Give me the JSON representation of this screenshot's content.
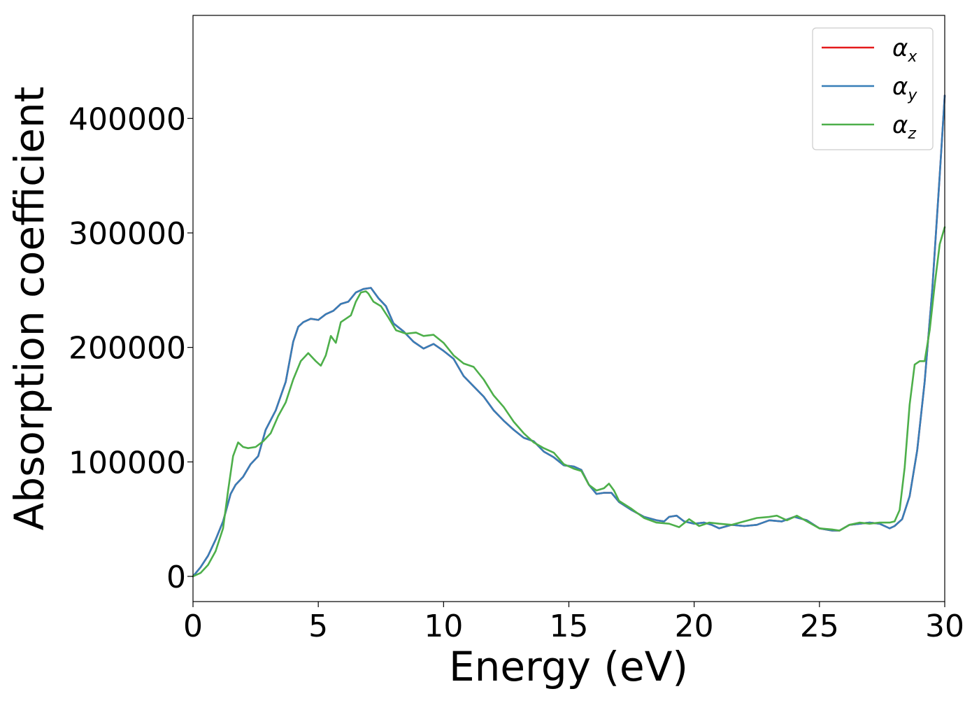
{
  "chart_data": {
    "type": "line",
    "title": "",
    "xlabel": "Energy (eV)",
    "ylabel": "Absorption coefficient",
    "xlim": [
      0,
      30
    ],
    "ylim": [
      -22000,
      490000
    ],
    "x_ticks": [
      0,
      5,
      10,
      15,
      20,
      25,
      30
    ],
    "x_tick_labels": [
      "0",
      "5",
      "10",
      "15",
      "20",
      "25",
      "30"
    ],
    "y_ticks": [
      0,
      100000,
      200000,
      300000,
      400000
    ],
    "y_tick_labels": [
      "0",
      "100000",
      "200000",
      "300000",
      "400000"
    ],
    "grid": false,
    "legend_position": "top-right",
    "legend": [
      {
        "symbol": "α",
        "subscript": "x",
        "color": "#e41a1c"
      },
      {
        "symbol": "α",
        "subscript": "y",
        "color": "#377eb8"
      },
      {
        "symbol": "α",
        "subscript": "z",
        "color": "#4daf4a"
      }
    ],
    "series": [
      {
        "name": "αx",
        "color": "#e41a1c",
        "x": [
          0,
          0.3,
          0.6,
          0.9,
          1.2,
          1.5,
          1.7,
          2.0,
          2.3,
          2.6,
          2.9,
          3.3,
          3.7,
          4.0,
          4.2,
          4.4,
          4.7,
          5.0,
          5.3,
          5.6,
          5.9,
          6.2,
          6.5,
          6.8,
          7.1,
          7.4,
          7.7,
          8.0,
          8.4,
          8.8,
          9.2,
          9.6,
          10.0,
          10.4,
          10.8,
          11.2,
          11.6,
          12.0,
          12.4,
          12.8,
          13.2,
          13.6,
          14.0,
          14.4,
          14.8,
          15.2,
          15.5,
          15.8,
          16.1,
          16.4,
          16.7,
          17.0,
          17.5,
          18.0,
          18.5,
          18.8,
          19.0,
          19.3,
          19.6,
          20.0,
          20.4,
          20.7,
          21.0,
          21.5,
          22.0,
          22.5,
          23.0,
          23.5,
          24.0,
          24.5,
          25.0,
          25.5,
          25.8,
          26.2,
          26.6,
          27.0,
          27.4,
          27.8,
          28.0,
          28.3,
          28.6,
          28.9,
          29.2,
          29.5,
          29.8,
          30.0
        ],
        "y": [
          0,
          8000,
          18000,
          32000,
          48000,
          72000,
          80000,
          87000,
          98000,
          105000,
          128000,
          145000,
          170000,
          205000,
          218000,
          222000,
          225000,
          224000,
          229000,
          232000,
          238000,
          240000,
          248000,
          251000,
          252000,
          243000,
          236000,
          221000,
          214000,
          205000,
          199000,
          203000,
          197000,
          190000,
          175000,
          166000,
          157000,
          145000,
          136000,
          128000,
          121000,
          118000,
          109000,
          104000,
          97000,
          96000,
          93000,
          80000,
          72000,
          73000,
          73000,
          65000,
          58000,
          52000,
          49000,
          48000,
          52000,
          53000,
          48000,
          46000,
          47000,
          45000,
          42000,
          45000,
          44000,
          45000,
          49000,
          48000,
          52000,
          49000,
          42000,
          40000,
          40000,
          45000,
          46000,
          47000,
          46000,
          42000,
          44000,
          50000,
          70000,
          110000,
          170000,
          250000,
          350000,
          420000
        ]
      },
      {
        "name": "αy",
        "color": "#377eb8",
        "x": [
          0,
          0.3,
          0.6,
          0.9,
          1.2,
          1.5,
          1.7,
          2.0,
          2.3,
          2.6,
          2.9,
          3.3,
          3.7,
          4.0,
          4.2,
          4.4,
          4.7,
          5.0,
          5.3,
          5.6,
          5.9,
          6.2,
          6.5,
          6.8,
          7.1,
          7.4,
          7.7,
          8.0,
          8.4,
          8.8,
          9.2,
          9.6,
          10.0,
          10.4,
          10.8,
          11.2,
          11.6,
          12.0,
          12.4,
          12.8,
          13.2,
          13.6,
          14.0,
          14.4,
          14.8,
          15.2,
          15.5,
          15.8,
          16.1,
          16.4,
          16.7,
          17.0,
          17.5,
          18.0,
          18.5,
          18.8,
          19.0,
          19.3,
          19.6,
          20.0,
          20.4,
          20.7,
          21.0,
          21.5,
          22.0,
          22.5,
          23.0,
          23.5,
          24.0,
          24.5,
          25.0,
          25.5,
          25.8,
          26.2,
          26.6,
          27.0,
          27.4,
          27.8,
          28.0,
          28.3,
          28.6,
          28.9,
          29.2,
          29.5,
          29.8,
          30.0
        ],
        "y": [
          0,
          8000,
          18000,
          32000,
          48000,
          72000,
          80000,
          87000,
          98000,
          105000,
          128000,
          145000,
          170000,
          205000,
          218000,
          222000,
          225000,
          224000,
          229000,
          232000,
          238000,
          240000,
          248000,
          251000,
          252000,
          243000,
          236000,
          221000,
          214000,
          205000,
          199000,
          203000,
          197000,
          190000,
          175000,
          166000,
          157000,
          145000,
          136000,
          128000,
          121000,
          118000,
          109000,
          104000,
          97000,
          96000,
          93000,
          80000,
          72000,
          73000,
          73000,
          65000,
          58000,
          52000,
          49000,
          48000,
          52000,
          53000,
          48000,
          46000,
          47000,
          45000,
          42000,
          45000,
          44000,
          45000,
          49000,
          48000,
          52000,
          49000,
          42000,
          40000,
          40000,
          45000,
          46000,
          47000,
          46000,
          42000,
          44000,
          50000,
          70000,
          110000,
          170000,
          250000,
          350000,
          420000
        ]
      },
      {
        "name": "αz",
        "color": "#4daf4a",
        "x": [
          0,
          0.3,
          0.6,
          0.9,
          1.2,
          1.4,
          1.6,
          1.8,
          2.0,
          2.2,
          2.5,
          2.8,
          3.1,
          3.4,
          3.7,
          4.0,
          4.3,
          4.6,
          4.9,
          5.1,
          5.3,
          5.5,
          5.7,
          5.9,
          6.1,
          6.3,
          6.5,
          6.7,
          6.9,
          7.0,
          7.2,
          7.5,
          7.8,
          8.1,
          8.5,
          8.9,
          9.2,
          9.6,
          10.0,
          10.4,
          10.8,
          11.2,
          11.6,
          12.0,
          12.4,
          12.8,
          13.2,
          13.6,
          14.0,
          14.4,
          14.8,
          15.2,
          15.5,
          15.8,
          16.1,
          16.4,
          16.6,
          16.8,
          17.0,
          17.5,
          18.0,
          18.5,
          19.0,
          19.4,
          19.8,
          20.2,
          20.6,
          21.0,
          21.5,
          22.0,
          22.5,
          23.0,
          23.3,
          23.7,
          24.1,
          24.5,
          25.0,
          25.5,
          25.8,
          26.2,
          26.6,
          27.0,
          27.4,
          27.8,
          28.0,
          28.2,
          28.4,
          28.6,
          28.8,
          29.0,
          29.2,
          29.4,
          29.6,
          29.8,
          30.0
        ],
        "y": [
          0,
          3000,
          10000,
          22000,
          42000,
          75000,
          105000,
          117000,
          113000,
          112000,
          113000,
          118000,
          125000,
          140000,
          152000,
          172000,
          188000,
          195000,
          188000,
          184000,
          193000,
          210000,
          204000,
          222000,
          225000,
          228000,
          240000,
          248000,
          249000,
          247000,
          240000,
          236000,
          226000,
          215000,
          212000,
          213000,
          210000,
          211000,
          204000,
          193000,
          186000,
          183000,
          172000,
          158000,
          148000,
          135000,
          125000,
          117000,
          112000,
          108000,
          98000,
          94000,
          92000,
          80000,
          75000,
          77000,
          81000,
          75000,
          66000,
          59000,
          51000,
          47000,
          46000,
          43000,
          50000,
          44000,
          47000,
          46000,
          45000,
          48000,
          51000,
          52000,
          53000,
          49000,
          53000,
          48000,
          42000,
          41000,
          40000,
          45000,
          47000,
          46000,
          47000,
          47000,
          48000,
          58000,
          95000,
          150000,
          185000,
          188000,
          188000,
          215000,
          255000,
          290000,
          305000
        ]
      }
    ]
  }
}
